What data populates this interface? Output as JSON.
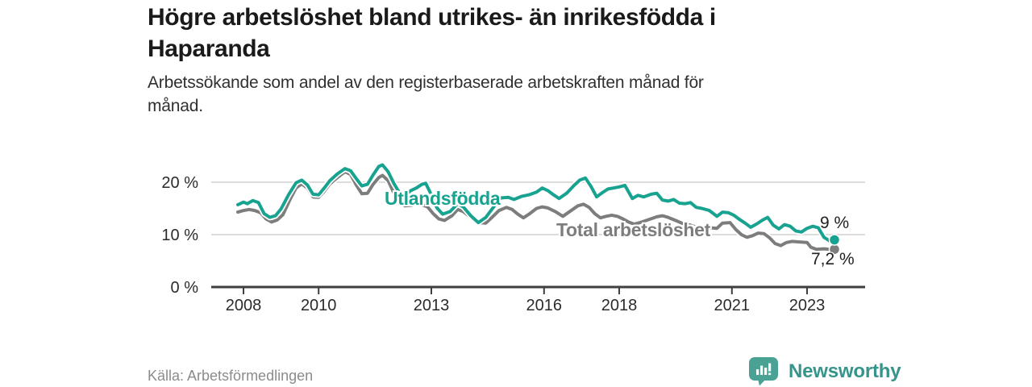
{
  "header": {
    "title_line1": "Högre arbetslöshet bland utrikes- än inrikesfödda i",
    "title_line2": "Haparanda",
    "subtitle_line1": "Arbetssökande som andel av den registerbaserade arbetskraften månad för",
    "subtitle_line2": "månad."
  },
  "footer": {
    "source": "Källa: Arbetsförmedlingen",
    "brand_name": "Newsworthy"
  },
  "colors": {
    "accent_teal": "#18a290",
    "series_gray": "#7d7d7d",
    "logo_teal": "#4aa294",
    "brand_text_teal": "#37948a",
    "gridline": "#dcdcdc",
    "axis": "#3f3f3f",
    "tick_text": "#2b2b2b"
  },
  "chart_data": {
    "type": "line",
    "title": "Högre arbetslöshet bland utrikes- än inrikesfödda i Haparanda",
    "subtitle": "Arbetssökande som andel av den registerbaserade arbetskraften månad för månad.",
    "unit": "%",
    "grid": "horizontal",
    "x_axis": {
      "min": 2007.6,
      "max": 2024.5,
      "ticks": [
        2008,
        2010,
        2013,
        2016,
        2018,
        2021,
        2023
      ]
    },
    "y_axis": {
      "min": 0,
      "max": 24,
      "ticks": [
        {
          "value": 0,
          "label": "0 %"
        },
        {
          "value": 10,
          "label": "10 %"
        },
        {
          "value": 20,
          "label": "20 %"
        }
      ]
    },
    "series": [
      {
        "name": "Utlandsfödda",
        "color": "#18a290",
        "end_label": "9 %",
        "end_value": 9.0,
        "points": [
          [
            2007.85,
            15.7
          ],
          [
            2008.0,
            16.2
          ],
          [
            2008.1,
            15.9
          ],
          [
            2008.25,
            16.5
          ],
          [
            2008.4,
            16.1
          ],
          [
            2008.55,
            14.0
          ],
          [
            2008.7,
            13.3
          ],
          [
            2008.85,
            13.6
          ],
          [
            2009.0,
            14.9
          ],
          [
            2009.2,
            17.6
          ],
          [
            2009.4,
            19.9
          ],
          [
            2009.55,
            20.4
          ],
          [
            2009.7,
            19.5
          ],
          [
            2009.85,
            17.7
          ],
          [
            2010.0,
            17.6
          ],
          [
            2010.15,
            18.9
          ],
          [
            2010.3,
            20.3
          ],
          [
            2010.5,
            21.6
          ],
          [
            2010.7,
            22.6
          ],
          [
            2010.85,
            22.2
          ],
          [
            2011.0,
            20.7
          ],
          [
            2011.15,
            19.3
          ],
          [
            2011.3,
            19.6
          ],
          [
            2011.45,
            21.4
          ],
          [
            2011.6,
            23.0
          ],
          [
            2011.7,
            23.3
          ],
          [
            2011.85,
            22.0
          ],
          [
            2012.0,
            19.8
          ],
          [
            2012.15,
            18.0
          ],
          [
            2012.3,
            17.5
          ],
          [
            2012.45,
            18.4
          ],
          [
            2012.6,
            18.9
          ],
          [
            2012.75,
            19.6
          ],
          [
            2012.85,
            19.8
          ],
          [
            2013.0,
            17.6
          ],
          [
            2013.15,
            15.1
          ],
          [
            2013.3,
            13.9
          ],
          [
            2013.5,
            14.4
          ],
          [
            2013.7,
            15.9
          ],
          [
            2013.85,
            15.3
          ],
          [
            2014.05,
            13.6
          ],
          [
            2014.25,
            12.3
          ],
          [
            2014.45,
            13.3
          ],
          [
            2014.65,
            15.2
          ],
          [
            2014.85,
            17.0
          ],
          [
            2015.05,
            17.1
          ],
          [
            2015.2,
            16.7
          ],
          [
            2015.4,
            17.3
          ],
          [
            2015.6,
            17.6
          ],
          [
            2015.8,
            18.1
          ],
          [
            2015.95,
            18.9
          ],
          [
            2016.1,
            18.4
          ],
          [
            2016.25,
            17.6
          ],
          [
            2016.4,
            16.9
          ],
          [
            2016.6,
            17.9
          ],
          [
            2016.8,
            19.4
          ],
          [
            2016.95,
            20.4
          ],
          [
            2017.1,
            20.8
          ],
          [
            2017.25,
            19.2
          ],
          [
            2017.4,
            17.2
          ],
          [
            2017.55,
            18.0
          ],
          [
            2017.7,
            18.7
          ],
          [
            2017.85,
            18.9
          ],
          [
            2018.0,
            19.1
          ],
          [
            2018.15,
            19.4
          ],
          [
            2018.35,
            16.9
          ],
          [
            2018.5,
            17.5
          ],
          [
            2018.65,
            17.2
          ],
          [
            2018.85,
            17.7
          ],
          [
            2019.0,
            17.9
          ],
          [
            2019.15,
            16.6
          ],
          [
            2019.3,
            16.4
          ],
          [
            2019.45,
            16.7
          ],
          [
            2019.6,
            16.0
          ],
          [
            2019.75,
            15.9
          ],
          [
            2019.9,
            16.1
          ],
          [
            2020.05,
            15.2
          ],
          [
            2020.2,
            15.0
          ],
          [
            2020.4,
            14.6
          ],
          [
            2020.6,
            13.5
          ],
          [
            2020.75,
            14.3
          ],
          [
            2020.9,
            14.2
          ],
          [
            2021.05,
            13.7
          ],
          [
            2021.2,
            12.9
          ],
          [
            2021.35,
            12.2
          ],
          [
            2021.5,
            11.4
          ],
          [
            2021.65,
            12.0
          ],
          [
            2021.8,
            12.7
          ],
          [
            2021.95,
            13.3
          ],
          [
            2022.1,
            11.8
          ],
          [
            2022.25,
            11.1
          ],
          [
            2022.4,
            11.9
          ],
          [
            2022.55,
            11.6
          ],
          [
            2022.7,
            10.7
          ],
          [
            2022.85,
            10.5
          ],
          [
            2023.0,
            11.2
          ],
          [
            2023.15,
            11.6
          ],
          [
            2023.3,
            11.3
          ],
          [
            2023.45,
            9.5
          ],
          [
            2023.6,
            8.8
          ],
          [
            2023.73,
            9.0
          ]
        ]
      },
      {
        "name": "Total arbetslöshet",
        "color": "#7d7d7d",
        "end_label": "7,2 %",
        "end_value": 7.2,
        "points": [
          [
            2007.85,
            14.3
          ],
          [
            2008.0,
            14.6
          ],
          [
            2008.15,
            14.8
          ],
          [
            2008.3,
            14.6
          ],
          [
            2008.45,
            14.2
          ],
          [
            2008.6,
            13.0
          ],
          [
            2008.75,
            12.4
          ],
          [
            2008.9,
            12.8
          ],
          [
            2009.05,
            13.8
          ],
          [
            2009.25,
            16.9
          ],
          [
            2009.4,
            18.9
          ],
          [
            2009.55,
            19.7
          ],
          [
            2009.7,
            18.9
          ],
          [
            2009.85,
            17.2
          ],
          [
            2010.0,
            17.1
          ],
          [
            2010.15,
            18.3
          ],
          [
            2010.3,
            19.7
          ],
          [
            2010.5,
            20.9
          ],
          [
            2010.7,
            22.0
          ],
          [
            2010.85,
            21.5
          ],
          [
            2011.0,
            19.5
          ],
          [
            2011.15,
            17.8
          ],
          [
            2011.3,
            17.9
          ],
          [
            2011.45,
            19.6
          ],
          [
            2011.6,
            20.9
          ],
          [
            2011.7,
            21.3
          ],
          [
            2011.85,
            20.3
          ],
          [
            2012.0,
            18.0
          ],
          [
            2012.15,
            16.2
          ],
          [
            2012.3,
            15.5
          ],
          [
            2012.45,
            15.6
          ],
          [
            2012.6,
            15.8
          ],
          [
            2012.75,
            15.7
          ],
          [
            2012.9,
            15.3
          ],
          [
            2013.05,
            14.0
          ],
          [
            2013.2,
            13.0
          ],
          [
            2013.35,
            12.7
          ],
          [
            2013.55,
            13.6
          ],
          [
            2013.7,
            14.8
          ],
          [
            2013.85,
            14.4
          ],
          [
            2014.05,
            13.3
          ],
          [
            2014.25,
            12.3
          ],
          [
            2014.45,
            12.2
          ],
          [
            2014.6,
            13.2
          ],
          [
            2014.8,
            14.6
          ],
          [
            2015.0,
            15.2
          ],
          [
            2015.15,
            14.8
          ],
          [
            2015.3,
            13.9
          ],
          [
            2015.45,
            13.2
          ],
          [
            2015.6,
            13.9
          ],
          [
            2015.8,
            15.0
          ],
          [
            2015.95,
            15.3
          ],
          [
            2016.1,
            15.1
          ],
          [
            2016.3,
            14.4
          ],
          [
            2016.5,
            13.5
          ],
          [
            2016.7,
            14.5
          ],
          [
            2016.9,
            15.5
          ],
          [
            2017.05,
            15.8
          ],
          [
            2017.2,
            15.2
          ],
          [
            2017.35,
            14.0
          ],
          [
            2017.5,
            13.2
          ],
          [
            2017.65,
            13.5
          ],
          [
            2017.8,
            13.7
          ],
          [
            2017.95,
            13.5
          ],
          [
            2018.1,
            13.0
          ],
          [
            2018.25,
            12.4
          ],
          [
            2018.4,
            12.0
          ],
          [
            2018.6,
            12.4
          ],
          [
            2018.8,
            12.9
          ],
          [
            2019.0,
            13.4
          ],
          [
            2019.15,
            13.6
          ],
          [
            2019.3,
            13.3
          ],
          [
            2019.5,
            12.7
          ],
          [
            2019.7,
            12.1
          ],
          [
            2019.9,
            11.8
          ],
          [
            2020.1,
            11.3
          ],
          [
            2020.3,
            10.9
          ],
          [
            2020.45,
            11.3
          ],
          [
            2020.6,
            11.2
          ],
          [
            2020.75,
            12.2
          ],
          [
            2020.95,
            12.3
          ],
          [
            2021.1,
            11.0
          ],
          [
            2021.25,
            10.0
          ],
          [
            2021.4,
            9.5
          ],
          [
            2021.55,
            9.8
          ],
          [
            2021.7,
            10.3
          ],
          [
            2021.85,
            10.2
          ],
          [
            2022.0,
            9.4
          ],
          [
            2022.15,
            8.3
          ],
          [
            2022.3,
            7.9
          ],
          [
            2022.45,
            8.5
          ],
          [
            2022.6,
            8.7
          ],
          [
            2022.8,
            8.6
          ],
          [
            2023.0,
            8.5
          ],
          [
            2023.1,
            7.6
          ],
          [
            2023.25,
            7.2
          ],
          [
            2023.45,
            7.3
          ],
          [
            2023.6,
            7.2
          ],
          [
            2023.73,
            7.2
          ]
        ]
      }
    ]
  }
}
